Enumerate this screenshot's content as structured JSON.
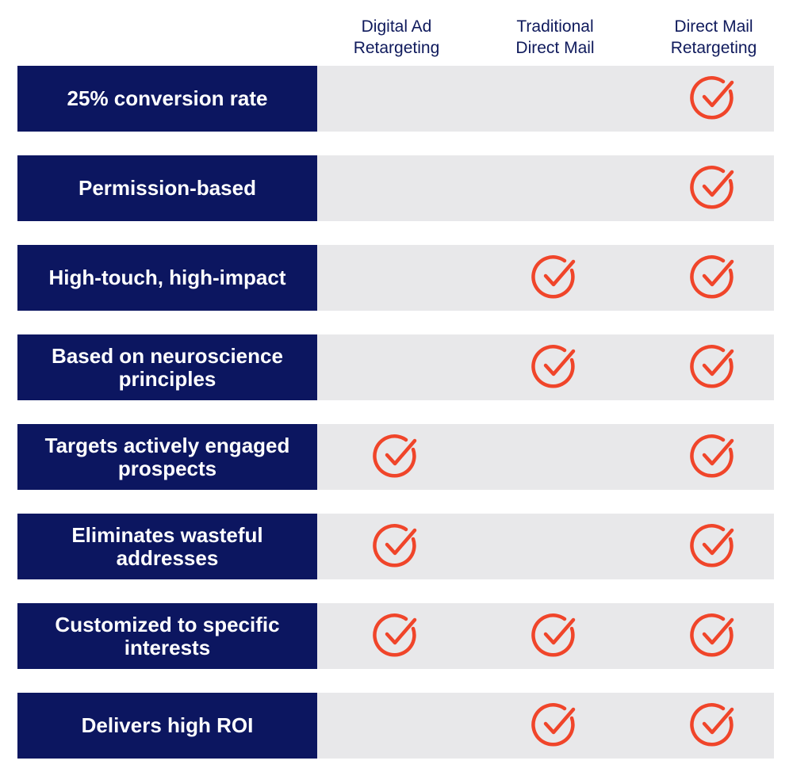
{
  "columns": [
    {
      "line1": "Digital Ad",
      "line2": "Retargeting"
    },
    {
      "line1": "Traditional",
      "line2": "Direct Mail"
    },
    {
      "line1": "Direct Mail",
      "line2": "Retargeting"
    }
  ],
  "rows": [
    {
      "feature": "25% conversion rate",
      "checks": [
        false,
        false,
        true
      ]
    },
    {
      "feature": "Permission-based",
      "checks": [
        false,
        false,
        true
      ]
    },
    {
      "feature": "High-touch, high-impact",
      "checks": [
        false,
        true,
        true
      ]
    },
    {
      "feature": "Based on neuroscience principles",
      "checks": [
        false,
        true,
        true
      ]
    },
    {
      "feature": "Targets actively engaged prospects",
      "checks": [
        true,
        false,
        true
      ]
    },
    {
      "feature": "Eliminates wasteful addresses",
      "checks": [
        true,
        false,
        true
      ]
    },
    {
      "feature": "Customized to specific interests",
      "checks": [
        true,
        true,
        true
      ]
    },
    {
      "feature": "Delivers high ROI",
      "checks": [
        false,
        true,
        true
      ]
    }
  ],
  "colors": {
    "label_bg": "#0c1660",
    "row_bg": "#e8e8ea",
    "check": "#f0452a",
    "header_text": "#0f1a5c"
  },
  "icons": {
    "check": "circle-check-icon"
  }
}
